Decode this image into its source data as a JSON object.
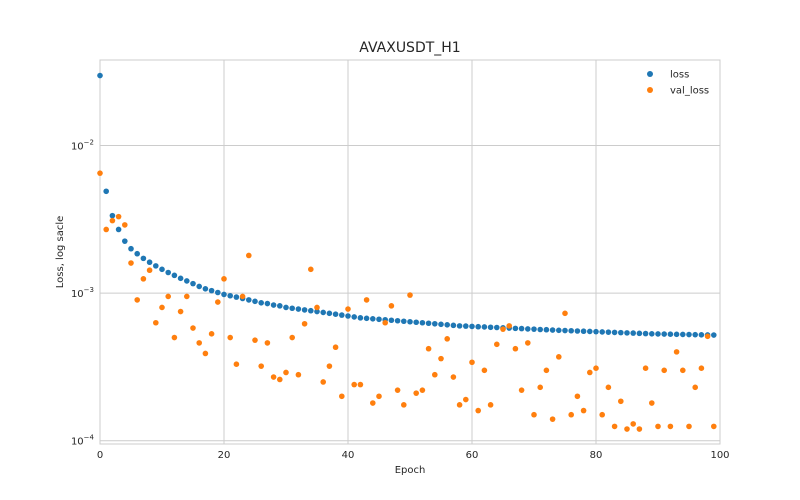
{
  "chart_data": {
    "type": "scatter",
    "title": "AVAXUSDT_H1",
    "xlabel": "Epoch",
    "ylabel": "Loss, log sacle",
    "xlim": [
      0,
      100
    ],
    "ylim": [
      9.5e-05,
      0.038
    ],
    "yscale": "log",
    "grid": true,
    "legend_position": "top-right",
    "x_ticks": [
      {
        "value": 0,
        "label": "0"
      },
      {
        "value": 20,
        "label": "20"
      },
      {
        "value": 40,
        "label": "40"
      },
      {
        "value": 60,
        "label": "60"
      },
      {
        "value": 80,
        "label": "80"
      },
      {
        "value": 100,
        "label": "100"
      }
    ],
    "y_ticks": [
      {
        "value": 0.01,
        "base": "10",
        "exp": "−2"
      },
      {
        "value": 0.001,
        "base": "10",
        "exp": "−3"
      },
      {
        "value": 0.0001,
        "base": "10",
        "exp": "−4"
      }
    ],
    "series": [
      {
        "name": "loss",
        "color": "#1f77b4",
        "values": [
          0.0298,
          0.0049,
          0.00335,
          0.0027,
          0.00225,
          0.002,
          0.00185,
          0.00172,
          0.00162,
          0.00153,
          0.00145,
          0.00138,
          0.00132,
          0.00126,
          0.00121,
          0.00116,
          0.00111,
          0.00107,
          0.00104,
          0.00101,
          0.00098,
          0.00096,
          0.00094,
          0.00092,
          0.0009,
          0.00088,
          0.00086,
          0.00085,
          0.00083,
          0.00082,
          0.0008,
          0.00079,
          0.00078,
          0.00077,
          0.00076,
          0.00075,
          0.00074,
          0.00073,
          0.00072,
          0.00071,
          0.0007,
          0.00069,
          0.00068,
          0.000675,
          0.00067,
          0.000665,
          0.00066,
          0.000655,
          0.00065,
          0.000645,
          0.00064,
          0.000635,
          0.00063,
          0.000625,
          0.00062,
          0.000615,
          0.00061,
          0.000605,
          0.0006,
          0.000598,
          0.000595,
          0.000592,
          0.00059,
          0.000587,
          0.000585,
          0.000582,
          0.00058,
          0.000577,
          0.000575,
          0.000572,
          0.00057,
          0.000567,
          0.000565,
          0.000562,
          0.00056,
          0.000558,
          0.000556,
          0.000554,
          0.000552,
          0.00055,
          0.000548,
          0.000546,
          0.000544,
          0.000542,
          0.00054,
          0.000538,
          0.000536,
          0.000534,
          0.000532,
          0.00053,
          0.000529,
          0.000528,
          0.000527,
          0.000526,
          0.000525,
          0.000524,
          0.000523,
          0.000522,
          0.000521,
          0.00052
        ]
      },
      {
        "name": "val_loss",
        "color": "#ff7f0e",
        "values": [
          0.0065,
          0.0027,
          0.0031,
          0.0033,
          0.0029,
          0.0016,
          0.0009,
          0.00125,
          0.00143,
          0.00063,
          0.0008,
          0.00095,
          0.0005,
          0.00075,
          0.00095,
          0.00058,
          0.00046,
          0.00039,
          0.00053,
          0.00087,
          0.00125,
          0.0005,
          0.00033,
          0.00095,
          0.0018,
          0.00048,
          0.00032,
          0.00046,
          0.00027,
          0.00026,
          0.00029,
          0.0005,
          0.00028,
          0.00062,
          0.00145,
          0.0008,
          0.00025,
          0.00032,
          0.00043,
          0.0002,
          0.00078,
          0.00024,
          0.00024,
          0.0009,
          0.00018,
          0.0002,
          0.00063,
          0.00082,
          0.00022,
          0.000175,
          0.00097,
          0.00021,
          0.00022,
          0.00042,
          0.00028,
          0.00036,
          0.00049,
          0.00027,
          0.000175,
          0.00019,
          0.00034,
          0.00016,
          0.0003,
          0.000175,
          0.00045,
          0.00057,
          0.0006,
          0.00042,
          0.00022,
          0.00046,
          0.00015,
          0.00023,
          0.0003,
          0.00014,
          0.00037,
          0.00073,
          0.00015,
          0.0002,
          0.00016,
          0.00029,
          0.00031,
          0.00015,
          0.00023,
          0.000125,
          0.000185,
          0.00012,
          0.00013,
          0.00012,
          0.00031,
          0.00018,
          0.000125,
          0.0003,
          0.000125,
          0.0004,
          0.0003,
          0.000125,
          0.00023,
          0.00031,
          0.00051,
          0.000125
        ]
      }
    ]
  }
}
